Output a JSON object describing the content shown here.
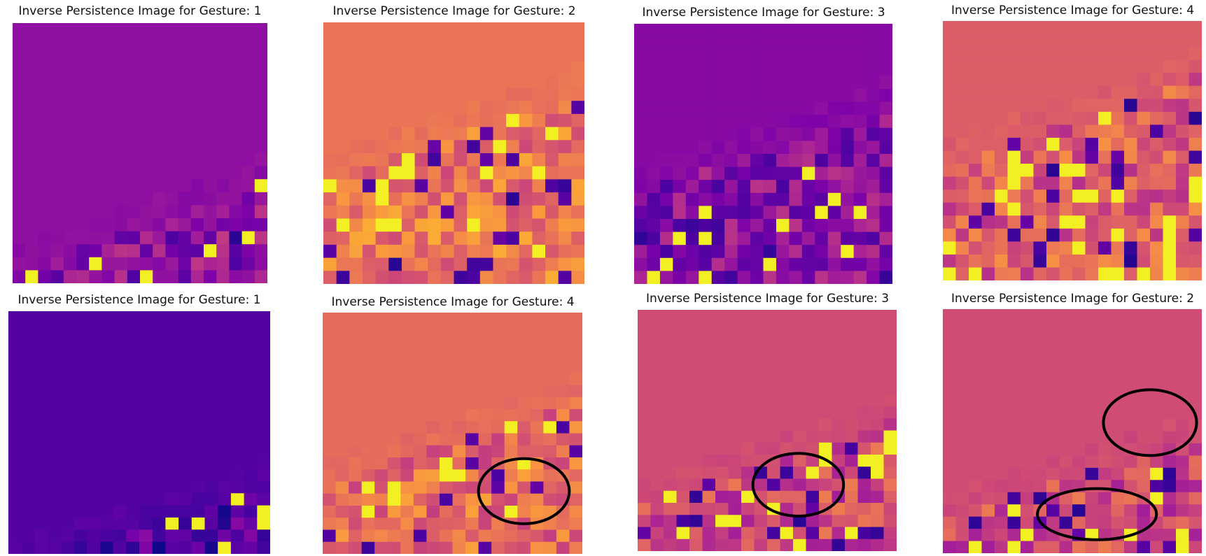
{
  "figure": {
    "colormap": "plasma",
    "grid_size": 20,
    "panel_titles": [
      "Inverse Persistence Image for Gesture: 1",
      "Inverse Persistence Image for Gesture: 2",
      "Inverse Persistence Image for Gesture: 3",
      "Inverse Persistence Image for Gesture: 4",
      "Inverse Persistence Image for Gesture: 1",
      "Inverse Persistence Image for Gesture: 4",
      "Inverse Persistence Image for Gesture: 3",
      "Inverse Persistence Image for Gesture: 2"
    ]
  },
  "chart_data": [
    {
      "type": "heatmap",
      "title": "Inverse Persistence Image for Gesture: 1",
      "background": 0.3,
      "seed": 11,
      "pattern_start_row": 12,
      "n_hot": 10,
      "n_cold": 7,
      "annotations": 0
    },
    {
      "type": "heatmap",
      "title": "Inverse Persistence Image for Gesture: 2",
      "background": 0.66,
      "seed": 23,
      "pattern_start_row": 5,
      "n_hot": 12,
      "n_cold": 6,
      "annotations": 0
    },
    {
      "type": "heatmap",
      "title": "Inverse Persistence Image for Gesture: 3",
      "background": 0.28,
      "seed": 37,
      "pattern_start_row": 6,
      "n_hot": 4,
      "n_cold": 14,
      "annotations": 0
    },
    {
      "type": "heatmap",
      "title": "Inverse Persistence Image for Gesture: 4",
      "background": 0.58,
      "seed": 41,
      "pattern_start_row": 4,
      "n_hot": 14,
      "n_cold": 8,
      "annotations": 0
    },
    {
      "type": "heatmap",
      "title": "Inverse Persistence Image for Gesture: 1",
      "background": 0.15,
      "seed": 53,
      "pattern_start_row": 14,
      "n_hot": 4,
      "n_cold": 6,
      "annotations": 0
    },
    {
      "type": "heatmap",
      "title": "Inverse Persistence Image for Gesture: 4",
      "background": 0.63,
      "seed": 67,
      "pattern_start_row": 7,
      "n_hot": 14,
      "n_cold": 6,
      "annotations": 1
    },
    {
      "type": "heatmap",
      "title": "Inverse Persistence Image for Gesture: 3",
      "background": 0.52,
      "seed": 71,
      "pattern_start_row": 9,
      "n_hot": 12,
      "n_cold": 6,
      "annotations": 1
    },
    {
      "type": "heatmap",
      "title": "Inverse Persistence Image for Gesture: 2",
      "background": 0.52,
      "seed": 83,
      "pattern_start_row": 10,
      "n_hot": 12,
      "n_cold": 5,
      "annotations": 2
    }
  ]
}
